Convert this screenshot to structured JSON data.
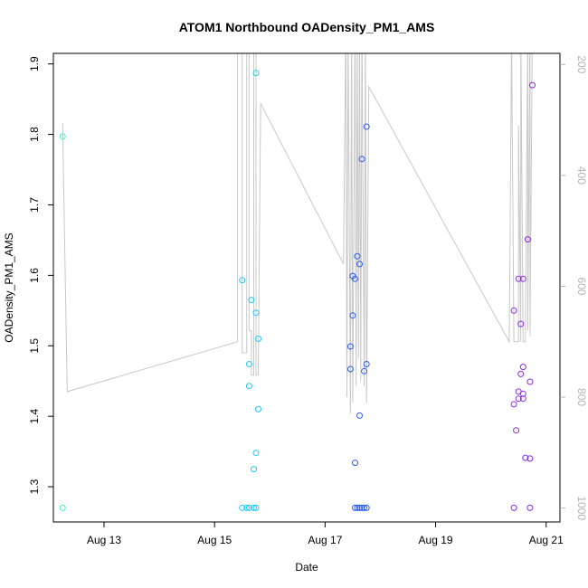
{
  "chart_data": {
    "type": "scatter",
    "title": "ATOM1 Northbound OADensity_PM1_AMS",
    "xlabel": "Date",
    "ylabel": "OADensity_PM1_AMS",
    "x_axis": {
      "type": "date",
      "range": [
        "2016-08-12T02:00",
        "2016-08-21T06:00"
      ],
      "tick_values": [
        "2016-08-13",
        "2016-08-15",
        "2016-08-17",
        "2016-08-19",
        "2016-08-21"
      ],
      "tick_labels": [
        "Aug 13",
        "Aug 15",
        "Aug 17",
        "Aug 19",
        "Aug 21"
      ]
    },
    "y_axis": {
      "range": [
        1.25,
        1.915
      ],
      "ticks": [
        1.3,
        1.4,
        1.5,
        1.6,
        1.7,
        1.8,
        1.9
      ]
    },
    "y2_axis": {
      "description": "secondary (gray) axis, inverted",
      "range": [
        1025,
        180
      ],
      "ticks": [
        200,
        400,
        600,
        800,
        1000
      ],
      "color": "#b3b3b3"
    },
    "grid": false,
    "points": [
      {
        "x": "2016-08-12T06:00",
        "y": 1.797,
        "color": "#3ff0c8"
      },
      {
        "x": "2016-08-12T06:00",
        "y": 1.27,
        "color": "#3ff0c8"
      },
      {
        "x": "2016-08-15T12:00",
        "y": 1.593,
        "color": "#1ec8f5"
      },
      {
        "x": "2016-08-15T12:00",
        "y": 1.27,
        "color": "#1ec8f5"
      },
      {
        "x": "2016-08-15T14:00",
        "y": 1.27,
        "color": "#1ec8f5"
      },
      {
        "x": "2016-08-15T15:00",
        "y": 1.474,
        "color": "#1ec8f5"
      },
      {
        "x": "2016-08-15T15:00",
        "y": 1.443,
        "color": "#1ec8f5"
      },
      {
        "x": "2016-08-15T15:00",
        "y": 1.27,
        "color": "#1ec8f5"
      },
      {
        "x": "2016-08-15T16:00",
        "y": 1.565,
        "color": "#1ec8f5"
      },
      {
        "x": "2016-08-15T17:00",
        "y": 1.27,
        "color": "#1ec8f5"
      },
      {
        "x": "2016-08-15T17:00",
        "y": 1.325,
        "color": "#1ec8f5"
      },
      {
        "x": "2016-08-15T18:00",
        "y": 1.887,
        "color": "#1ec8f5"
      },
      {
        "x": "2016-08-15T18:00",
        "y": 1.547,
        "color": "#1ec8f5"
      },
      {
        "x": "2016-08-15T18:00",
        "y": 1.348,
        "color": "#1ec8f5"
      },
      {
        "x": "2016-08-15T18:00",
        "y": 1.27,
        "color": "#1ec8f5"
      },
      {
        "x": "2016-08-15T19:00",
        "y": 1.51,
        "color": "#1ec8f5"
      },
      {
        "x": "2016-08-15T19:00",
        "y": 1.41,
        "color": "#1ec8f5"
      },
      {
        "x": "2016-08-17T11:00",
        "y": 1.499,
        "color": "#2a5cf0"
      },
      {
        "x": "2016-08-17T11:00",
        "y": 1.467,
        "color": "#2a5cf0"
      },
      {
        "x": "2016-08-17T12:00",
        "y": 1.599,
        "color": "#2a5cf0"
      },
      {
        "x": "2016-08-17T12:00",
        "y": 1.543,
        "color": "#2a5cf0"
      },
      {
        "x": "2016-08-17T13:00",
        "y": 1.595,
        "color": "#2a5cf0"
      },
      {
        "x": "2016-08-17T13:00",
        "y": 1.334,
        "color": "#2a5cf0"
      },
      {
        "x": "2016-08-17T13:00",
        "y": 1.27,
        "color": "#2a5cf0"
      },
      {
        "x": "2016-08-17T14:00",
        "y": 1.627,
        "color": "#2a5cf0"
      },
      {
        "x": "2016-08-17T14:00",
        "y": 1.27,
        "color": "#2a5cf0"
      },
      {
        "x": "2016-08-17T15:00",
        "y": 1.616,
        "color": "#2a5cf0"
      },
      {
        "x": "2016-08-17T15:00",
        "y": 1.401,
        "color": "#2a5cf0"
      },
      {
        "x": "2016-08-17T15:00",
        "y": 1.27,
        "color": "#2a5cf0"
      },
      {
        "x": "2016-08-17T16:00",
        "y": 1.765,
        "color": "#2a5cf0"
      },
      {
        "x": "2016-08-17T16:00",
        "y": 1.27,
        "color": "#2a5cf0"
      },
      {
        "x": "2016-08-17T17:00",
        "y": 1.464,
        "color": "#2a5cf0"
      },
      {
        "x": "2016-08-17T17:00",
        "y": 1.27,
        "color": "#2a5cf0"
      },
      {
        "x": "2016-08-17T18:00",
        "y": 1.811,
        "color": "#2a5cf0"
      },
      {
        "x": "2016-08-17T18:00",
        "y": 1.474,
        "color": "#2a5cf0"
      },
      {
        "x": "2016-08-17T18:00",
        "y": 1.27,
        "color": "#2a5cf0"
      },
      {
        "x": "2016-08-20T10:00",
        "y": 1.55,
        "color": "#8a2be2"
      },
      {
        "x": "2016-08-20T10:00",
        "y": 1.417,
        "color": "#8a2be2"
      },
      {
        "x": "2016-08-20T10:00",
        "y": 1.27,
        "color": "#8a2be2"
      },
      {
        "x": "2016-08-20T11:00",
        "y": 1.38,
        "color": "#8a2be2"
      },
      {
        "x": "2016-08-20T12:00",
        "y": 1.595,
        "color": "#8a2be2"
      },
      {
        "x": "2016-08-20T12:00",
        "y": 1.435,
        "color": "#8a2be2"
      },
      {
        "x": "2016-08-20T12:00",
        "y": 1.425,
        "color": "#8a2be2"
      },
      {
        "x": "2016-08-20T13:00",
        "y": 1.531,
        "color": "#8a2be2"
      },
      {
        "x": "2016-08-20T13:00",
        "y": 1.46,
        "color": "#8a2be2"
      },
      {
        "x": "2016-08-20T14:00",
        "y": 1.595,
        "color": "#8a2be2"
      },
      {
        "x": "2016-08-20T14:00",
        "y": 1.47,
        "color": "#8a2be2"
      },
      {
        "x": "2016-08-20T14:00",
        "y": 1.432,
        "color": "#8a2be2"
      },
      {
        "x": "2016-08-20T14:00",
        "y": 1.425,
        "color": "#8a2be2"
      },
      {
        "x": "2016-08-20T15:00",
        "y": 1.341,
        "color": "#8a2be2"
      },
      {
        "x": "2016-08-20T16:00",
        "y": 1.651,
        "color": "#8a2be2"
      },
      {
        "x": "2016-08-20T17:00",
        "y": 1.449,
        "color": "#8a2be2"
      },
      {
        "x": "2016-08-20T17:00",
        "y": 1.34,
        "color": "#8a2be2"
      },
      {
        "x": "2016-08-20T17:00",
        "y": 1.27,
        "color": "#8a2be2"
      },
      {
        "x": "2016-08-20T18:00",
        "y": 1.87,
        "color": "#8a2be2"
      }
    ],
    "secondary_line": {
      "axis": "y2",
      "color": "#c8c8c8",
      "points": [
        [
          "2016-08-12T06:00",
          305
        ],
        [
          "2016-08-12T08:00",
          790
        ],
        [
          "2016-08-15T10:00",
          700
        ],
        [
          "2016-08-15T10:00",
          130
        ],
        [
          "2016-08-15T12:00",
          130
        ],
        [
          "2016-08-15T12:00",
          720
        ],
        [
          "2016-08-15T14:00",
          720
        ],
        [
          "2016-08-15T14:00",
          130
        ],
        [
          "2016-08-15T15:00",
          130
        ],
        [
          "2016-08-15T15:00",
          680
        ],
        [
          "2016-08-15T16:00",
          680
        ],
        [
          "2016-08-15T16:00",
          760
        ],
        [
          "2016-08-15T17:00",
          760
        ],
        [
          "2016-08-15T17:00",
          130
        ],
        [
          "2016-08-15T18:00",
          130
        ],
        [
          "2016-08-15T18:00",
          760
        ],
        [
          "2016-08-15T19:00",
          760
        ],
        [
          "2016-08-15T20:00",
          270
        ],
        [
          "2016-08-17T08:00",
          560
        ],
        [
          "2016-08-17T09:00",
          130
        ],
        [
          "2016-08-17T09:30",
          800
        ],
        [
          "2016-08-17T10:00",
          130
        ],
        [
          "2016-08-17T11:00",
          830
        ],
        [
          "2016-08-17T11:30",
          130
        ],
        [
          "2016-08-17T12:00",
          810
        ],
        [
          "2016-08-17T13:00",
          130
        ],
        [
          "2016-08-17T13:30",
          780
        ],
        [
          "2016-08-17T14:00",
          130
        ],
        [
          "2016-08-17T14:30",
          730
        ],
        [
          "2016-08-17T15:00",
          130
        ],
        [
          "2016-08-17T15:30",
          770
        ],
        [
          "2016-08-17T16:00",
          130
        ],
        [
          "2016-08-17T17:00",
          780
        ],
        [
          "2016-08-17T17:30",
          130
        ],
        [
          "2016-08-17T18:00",
          810
        ],
        [
          "2016-08-17T19:00",
          240
        ],
        [
          "2016-08-20T08:00",
          700
        ],
        [
          "2016-08-20T09:00",
          150
        ],
        [
          "2016-08-20T10:00",
          700
        ],
        [
          "2016-08-20T12:00",
          700
        ],
        [
          "2016-08-20T12:00",
          310
        ],
        [
          "2016-08-20T13:00",
          700
        ],
        [
          "2016-08-20T13:00",
          130
        ],
        [
          "2016-08-20T14:00",
          700
        ],
        [
          "2016-08-20T15:00",
          700
        ],
        [
          "2016-08-20T16:00",
          130
        ],
        [
          "2016-08-20T16:00",
          680
        ],
        [
          "2016-08-20T17:00",
          130
        ],
        [
          "2016-08-20T17:00",
          690
        ],
        [
          "2016-08-20T18:00",
          130
        ]
      ]
    }
  }
}
